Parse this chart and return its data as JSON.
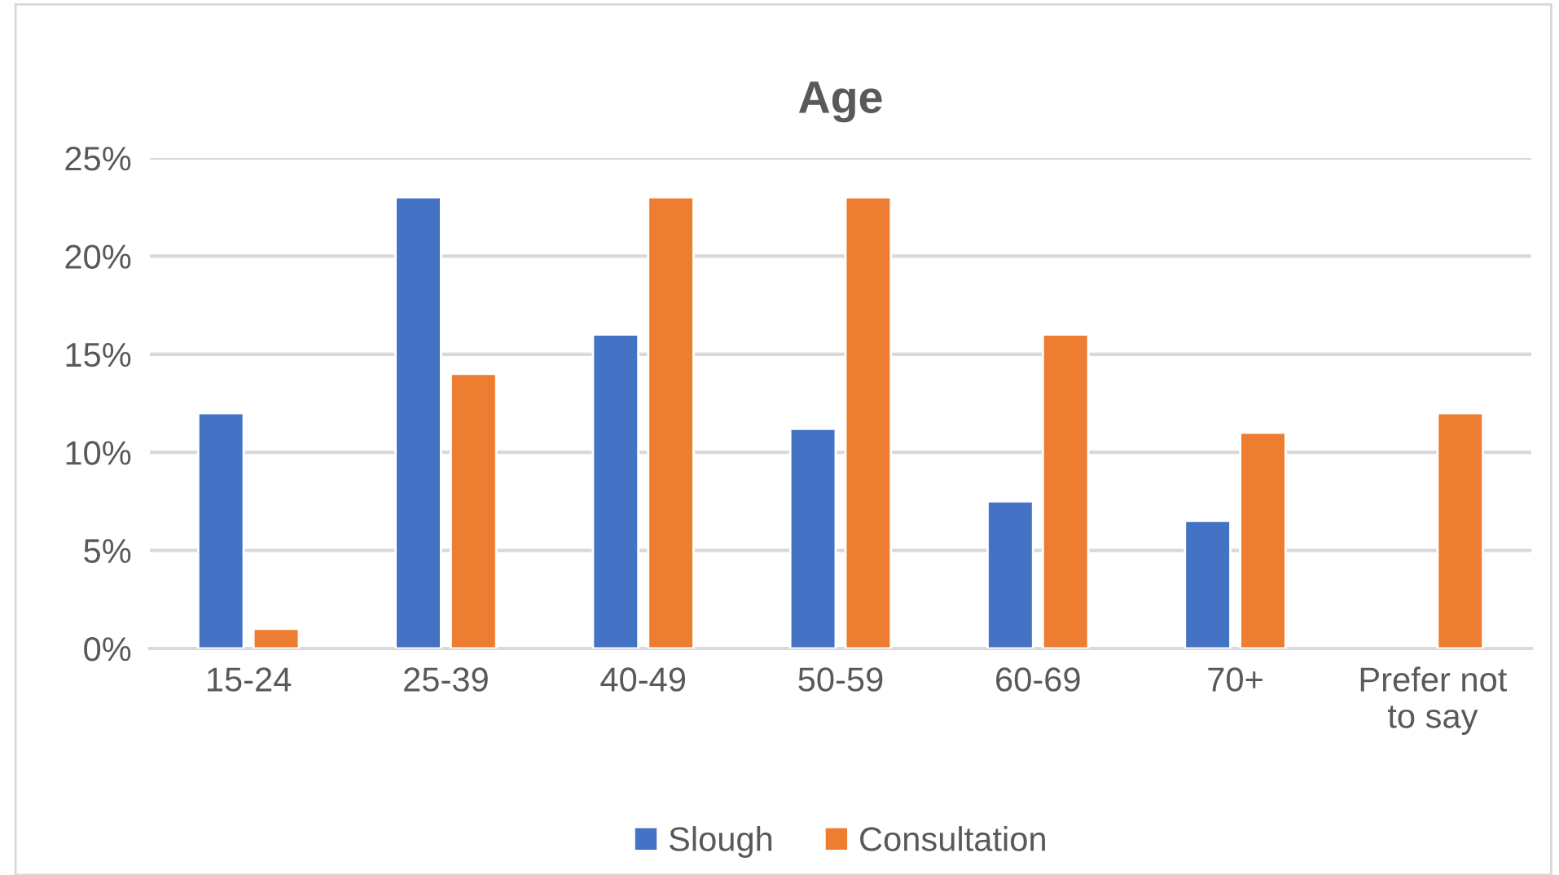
{
  "chart_data": {
    "type": "bar",
    "title": "Age",
    "categories": [
      "15-24",
      "25-39",
      "40-49",
      "50-59",
      "60-69",
      "70+",
      "Prefer not\nto say"
    ],
    "series": [
      {
        "name": "Slough",
        "color": "#4472c4",
        "values": [
          12,
          23,
          16,
          11.2,
          7.5,
          6.5,
          null
        ]
      },
      {
        "name": "Consultation",
        "color": "#ed7d31",
        "values": [
          1,
          14,
          23,
          23,
          16,
          11,
          12
        ]
      }
    ],
    "ylim": [
      0,
      25
    ],
    "yticks": [
      {
        "value": 0,
        "label": "0%"
      },
      {
        "value": 5,
        "label": "5%"
      },
      {
        "value": 10,
        "label": "10%"
      },
      {
        "value": 15,
        "label": "15%"
      },
      {
        "value": 20,
        "label": "20%"
      },
      {
        "value": 25,
        "label": "25%"
      }
    ],
    "grid": "y",
    "legend": "bottom"
  }
}
